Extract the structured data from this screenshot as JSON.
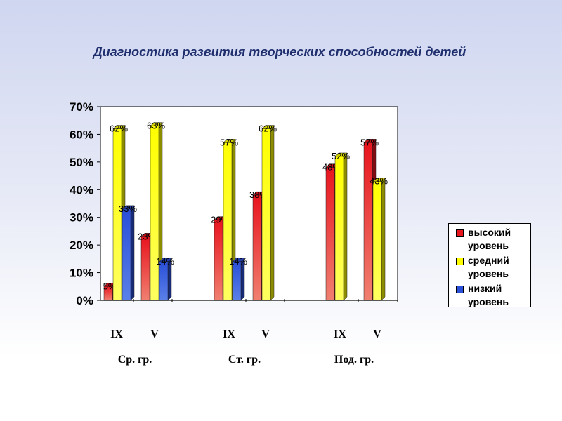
{
  "chart_data": {
    "type": "bar",
    "title": "Диагностика развития творческих способностей детей",
    "ylim": [
      0,
      70
    ],
    "yticks": [
      0,
      10,
      20,
      30,
      40,
      50,
      60,
      70
    ],
    "ytick_labels": [
      "0%",
      "10%",
      "20%",
      "30%",
      "40%",
      "50%",
      "60%",
      "70%"
    ],
    "groups": [
      {
        "label": "Ср. гр.",
        "categories": [
          "IX",
          "V"
        ]
      },
      {
        "label": "Ст. гр.",
        "categories": [
          "IX",
          "V"
        ]
      },
      {
        "label": "Под. гр.",
        "categories": [
          "IX",
          "V"
        ]
      }
    ],
    "series": [
      {
        "name": "высокий уровень",
        "color": "#e8141e",
        "values": [
          5,
          23,
          29,
          38,
          48,
          57
        ],
        "labels": [
          "5%",
          "23%",
          "29%",
          "38%",
          "48%",
          "57%"
        ]
      },
      {
        "name": "средний уровень",
        "color": "#ffff00",
        "values": [
          62,
          63,
          57,
          62,
          52,
          43
        ],
        "labels": [
          "62%",
          "63%",
          "57%",
          "62%",
          "52%",
          "43%"
        ]
      },
      {
        "name": "низкий уровень",
        "color": "#2a4fd8",
        "values": [
          33,
          14,
          14,
          0,
          0,
          0
        ],
        "labels": [
          "33%",
          "14%",
          "14%",
          null,
          null,
          null
        ]
      }
    ],
    "grid": false,
    "legend_position": "right"
  }
}
